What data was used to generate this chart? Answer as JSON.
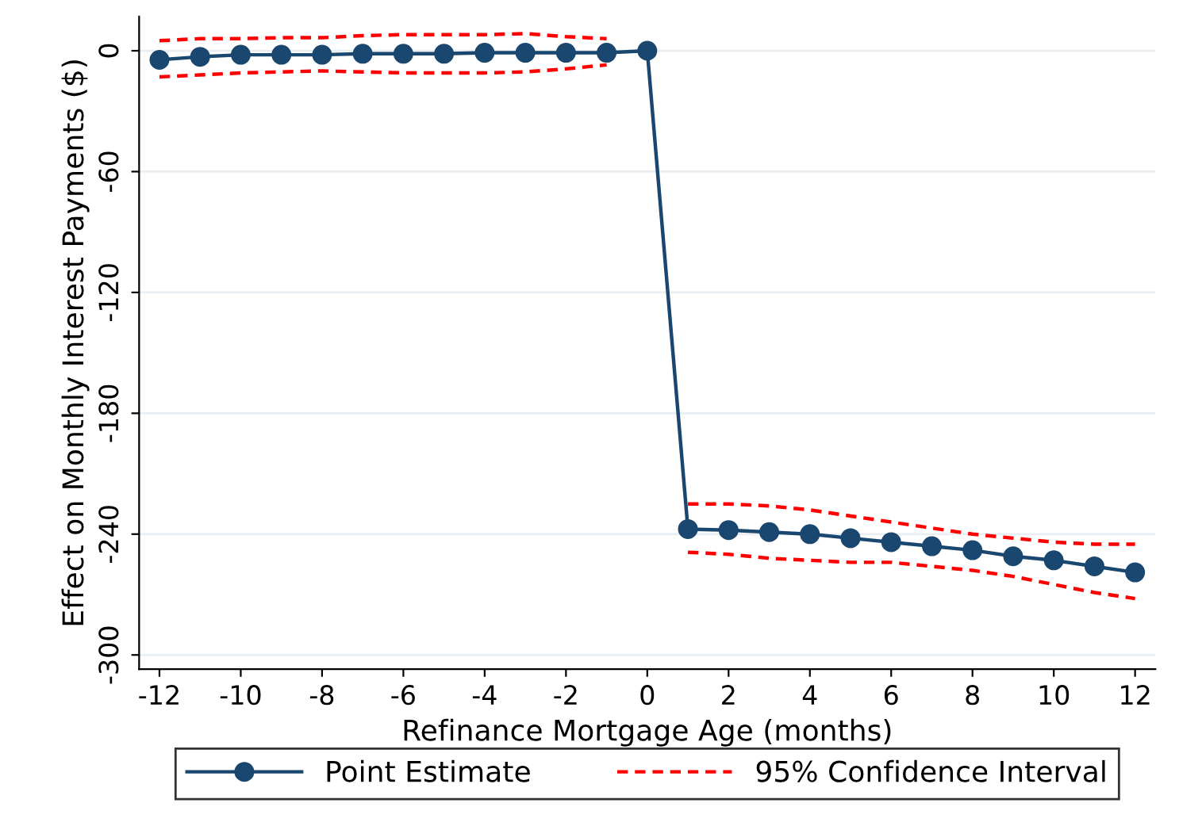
{
  "chart_data": {
    "type": "line",
    "xlabel": "Refinance Mortgage Age (months)",
    "ylabel": "Effect on Monthly Interest Payments ($)",
    "x": [
      -12,
      -11,
      -10,
      -9,
      -8,
      -7,
      -6,
      -5,
      -4,
      -3,
      -2,
      -1,
      0,
      1,
      2,
      3,
      4,
      5,
      6,
      7,
      8,
      9,
      10,
      11,
      12
    ],
    "series": [
      {
        "name": "Point Estimate",
        "color": "#1a476f",
        "marker": "circle",
        "line_style": "solid",
        "values": [
          -4.5,
          -3,
          -2,
          -2,
          -2,
          -1.5,
          -1.5,
          -1.5,
          -1,
          -1,
          -1,
          -1,
          0,
          -237.5,
          -238,
          -239,
          -240,
          -242,
          -244,
          -246,
          -248,
          -251,
          -253,
          -256,
          -259
        ]
      },
      {
        "name": "95% Confidence Interval",
        "color": "#ff0000",
        "marker": "none",
        "line_style": "dashed",
        "values": [
          5,
          6,
          6,
          6.5,
          6.5,
          7.5,
          8,
          8,
          8,
          8.5,
          7,
          6,
          null,
          -225,
          -225,
          -226,
          -228,
          -231,
          -234,
          -237,
          -240,
          -242,
          -244,
          -245,
          -245
        ]
      },
      {
        "color": "#ff0000",
        "marker": "none",
        "line_style": "dashed",
        "values": [
          -13,
          -12,
          -11,
          -10.5,
          -10,
          -10.5,
          -11,
          -11,
          -11,
          -10.5,
          -9,
          -7,
          null,
          -249,
          -250,
          -252,
          -253,
          -254,
          -254,
          -256,
          -258,
          -261,
          -265,
          -269,
          -272
        ]
      }
    ],
    "xlim": [
      -12.5,
      12.5
    ],
    "xticks": [
      -12,
      -10,
      -8,
      -6,
      -4,
      -2,
      0,
      2,
      4,
      6,
      8,
      10,
      12
    ],
    "ylim": [
      -307,
      17
    ],
    "yticks": [
      -300,
      -240,
      -180,
      -120,
      -60,
      0
    ],
    "grid": "y",
    "legend": "bottom"
  }
}
